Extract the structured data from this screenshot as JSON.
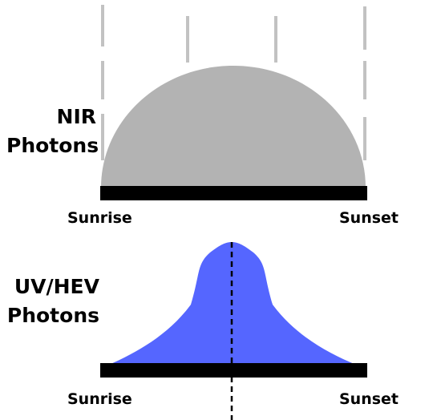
{
  "nir_panel": {
    "title_line1": "NIR",
    "title_line2": "Photons",
    "x_start_label": "Sunrise",
    "x_end_label": "Sunset",
    "fill_color": "#b3b3b3",
    "ray_color": "#c2c2c2"
  },
  "uv_panel": {
    "title_line1": "UV/HEV",
    "title_line2": "Photons",
    "x_start_label": "Sunrise",
    "x_end_label": "Sunset",
    "fill_color": "#5566ff"
  },
  "colors": {
    "baseline": "#000000",
    "text": "#000000",
    "background": "#ffffff"
  }
}
